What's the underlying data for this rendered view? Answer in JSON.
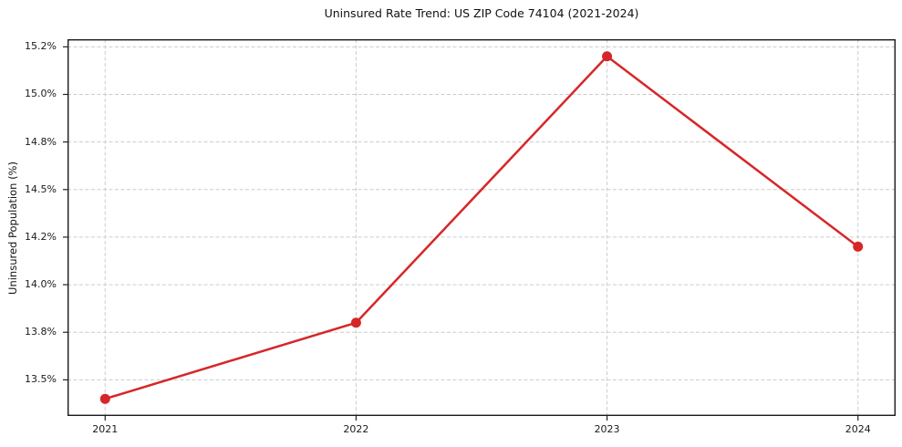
{
  "figure": {
    "background": "#ffffff",
    "text_color": "#1a1a1a",
    "grid_color": "#cccccc",
    "spine_color": "#1a1a1a"
  },
  "chart_data": {
    "type": "line",
    "title": "Uninsured Rate Trend: US ZIP Code 74104 (2021-2024)",
    "xlabel": "",
    "ylabel": "Uninsured Population (%)",
    "categories": [
      "2021",
      "2022",
      "2023",
      "2024"
    ],
    "series": [
      {
        "name": "Uninsured rate",
        "values": [
          13.4,
          13.8,
          15.2,
          14.2
        ],
        "color": "#d62728",
        "marker": "circle",
        "marker_radius": 5.5,
        "line_width": 2.5
      }
    ],
    "ylim": [
      13.31,
      15.29
    ],
    "xlim": [
      -0.15,
      3.15
    ],
    "yticks": {
      "values": [
        13.5,
        13.75,
        14.0,
        14.25,
        14.5,
        14.75,
        15.0,
        15.25
      ],
      "labels": [
        "13.5%",
        "13.8%",
        "14.0%",
        "14.2%",
        "14.5%",
        "14.8%",
        "15.0%",
        "15.2%"
      ]
    },
    "xticks": {
      "labels": [
        "2021",
        "2022",
        "2023",
        "2024"
      ]
    },
    "grid": {
      "visible": true,
      "style": "dashed",
      "axes": "both"
    },
    "legend": {
      "visible": false
    }
  }
}
